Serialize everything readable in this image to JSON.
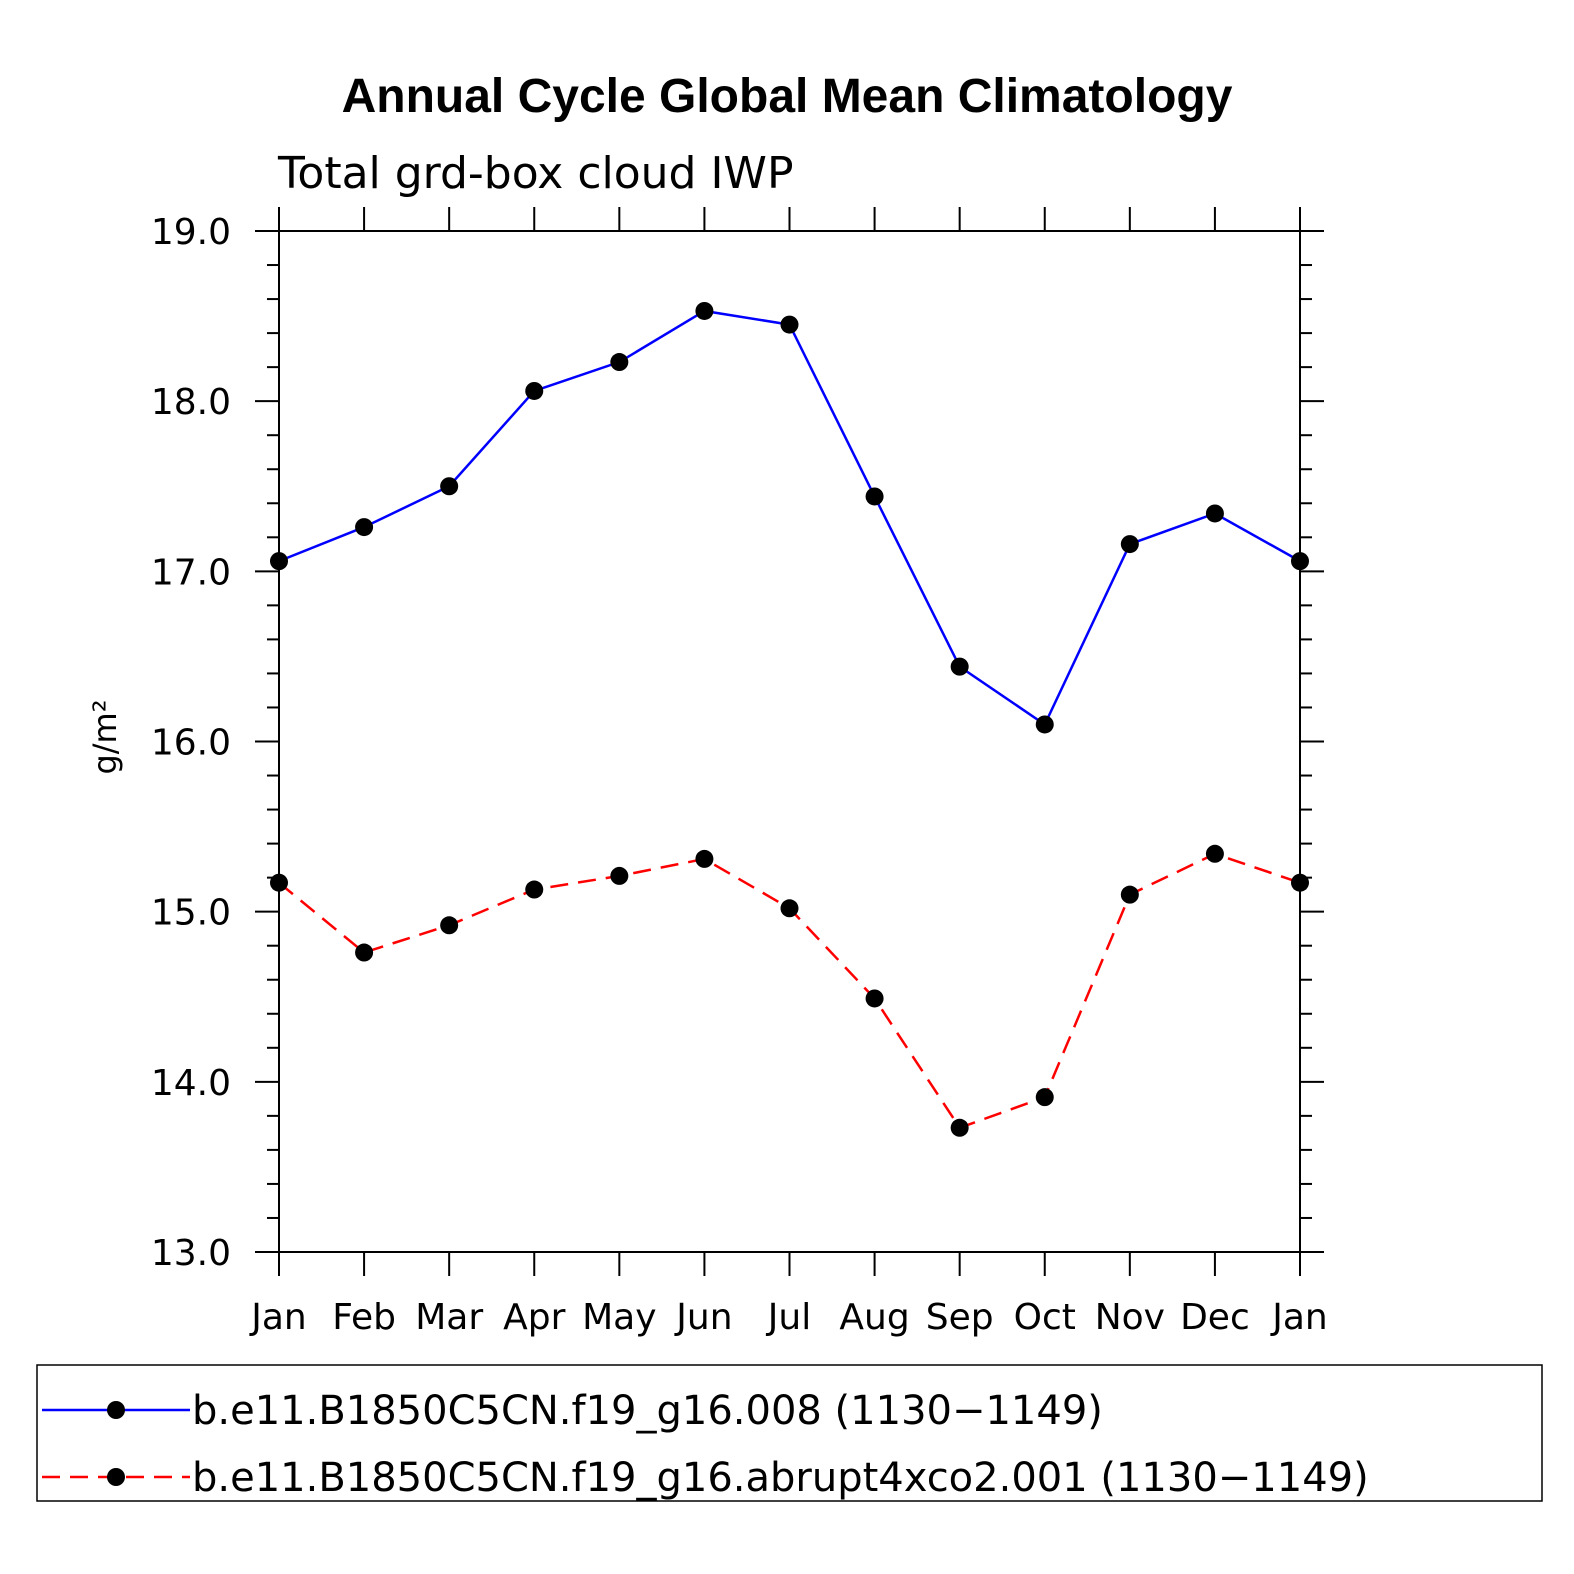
{
  "chart_data": {
    "type": "line",
    "title": "Annual Cycle Global Mean Climatology",
    "subtitle": "Total grd-box cloud IWP",
    "ylabel": "g/m²",
    "xlabel": "",
    "categories": [
      "Jan",
      "Feb",
      "Mar",
      "Apr",
      "May",
      "Jun",
      "Jul",
      "Aug",
      "Sep",
      "Oct",
      "Nov",
      "Dec",
      "Jan"
    ],
    "ylim": [
      13.0,
      19.0
    ],
    "yticks": [
      "13.0",
      "14.0",
      "15.0",
      "16.0",
      "17.0",
      "18.0",
      "19.0"
    ],
    "legend_position": "bottom",
    "series": [
      {
        "name": "b.e11.B1850C5CN.f19_g16.008 (1130−1149)",
        "color": "#0000ff",
        "dash": "solid",
        "marker": "filled-circle",
        "values": [
          17.06,
          17.26,
          17.5,
          18.06,
          18.23,
          18.53,
          18.45,
          17.44,
          16.44,
          16.1,
          17.16,
          17.34,
          17.06
        ]
      },
      {
        "name": "b.e11.B1850C5CN.f19_g16.abrupt4xco2.001 (1130−1149)",
        "color": "#ff0000",
        "dash": "dashed",
        "marker": "filled-circle",
        "values": [
          15.17,
          14.76,
          14.92,
          15.13,
          15.21,
          15.31,
          15.02,
          14.49,
          13.73,
          13.91,
          15.1,
          15.34,
          15.17
        ]
      }
    ]
  }
}
